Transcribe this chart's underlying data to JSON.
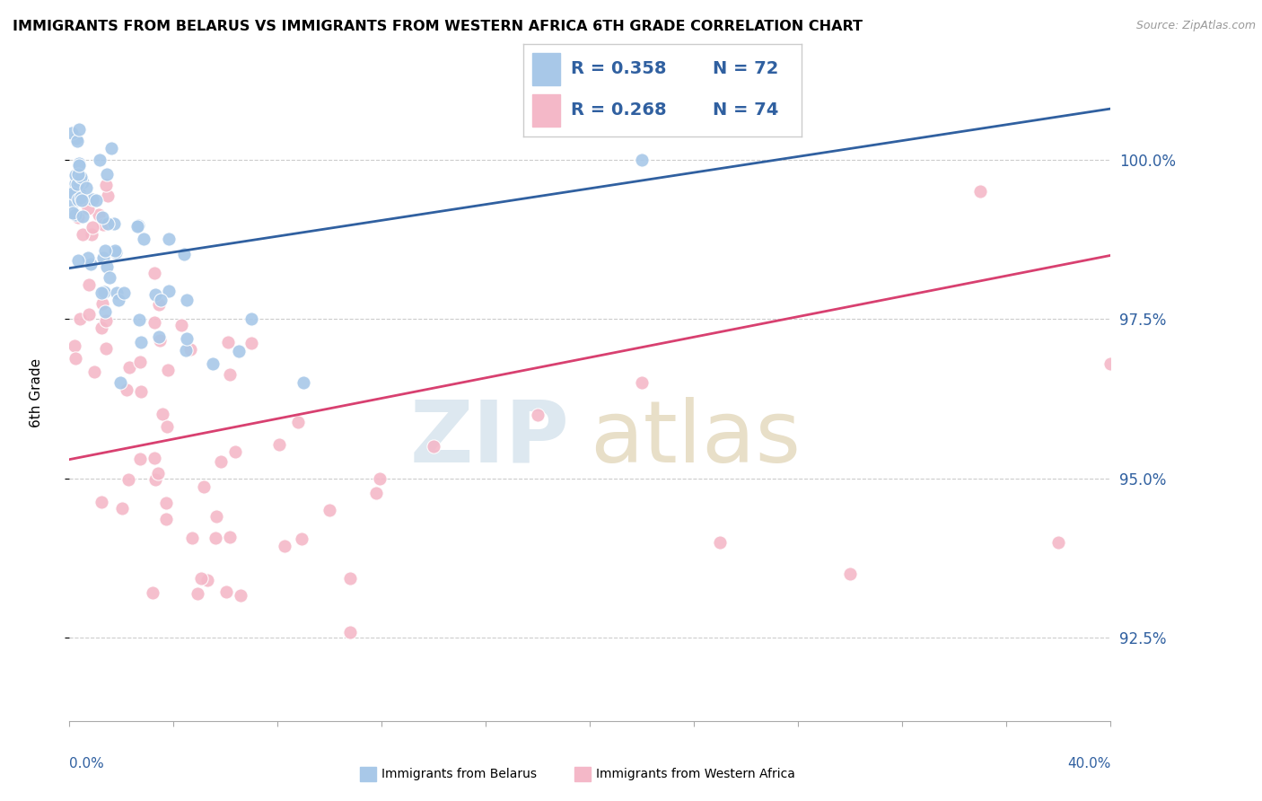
{
  "title": "IMMIGRANTS FROM BELARUS VS IMMIGRANTS FROM WESTERN AFRICA 6TH GRADE CORRELATION CHART",
  "source": "Source: ZipAtlas.com",
  "ylabel": "6th Grade",
  "y_tick_values": [
    92.5,
    95.0,
    97.5,
    100.0
  ],
  "xlim": [
    0.0,
    40.0
  ],
  "ylim": [
    91.2,
    101.5
  ],
  "legend_r1": "R = 0.358",
  "legend_n1": "N = 72",
  "legend_r2": "R = 0.268",
  "legend_n2": "N = 74",
  "blue_color": "#a8c8e8",
  "pink_color": "#f4b8c8",
  "blue_line_color": "#3060a0",
  "pink_line_color": "#d84070",
  "legend_text_color": "#3060a0",
  "watermark_zip_color": "#dde8f0",
  "watermark_atlas_color": "#e8dfc8"
}
